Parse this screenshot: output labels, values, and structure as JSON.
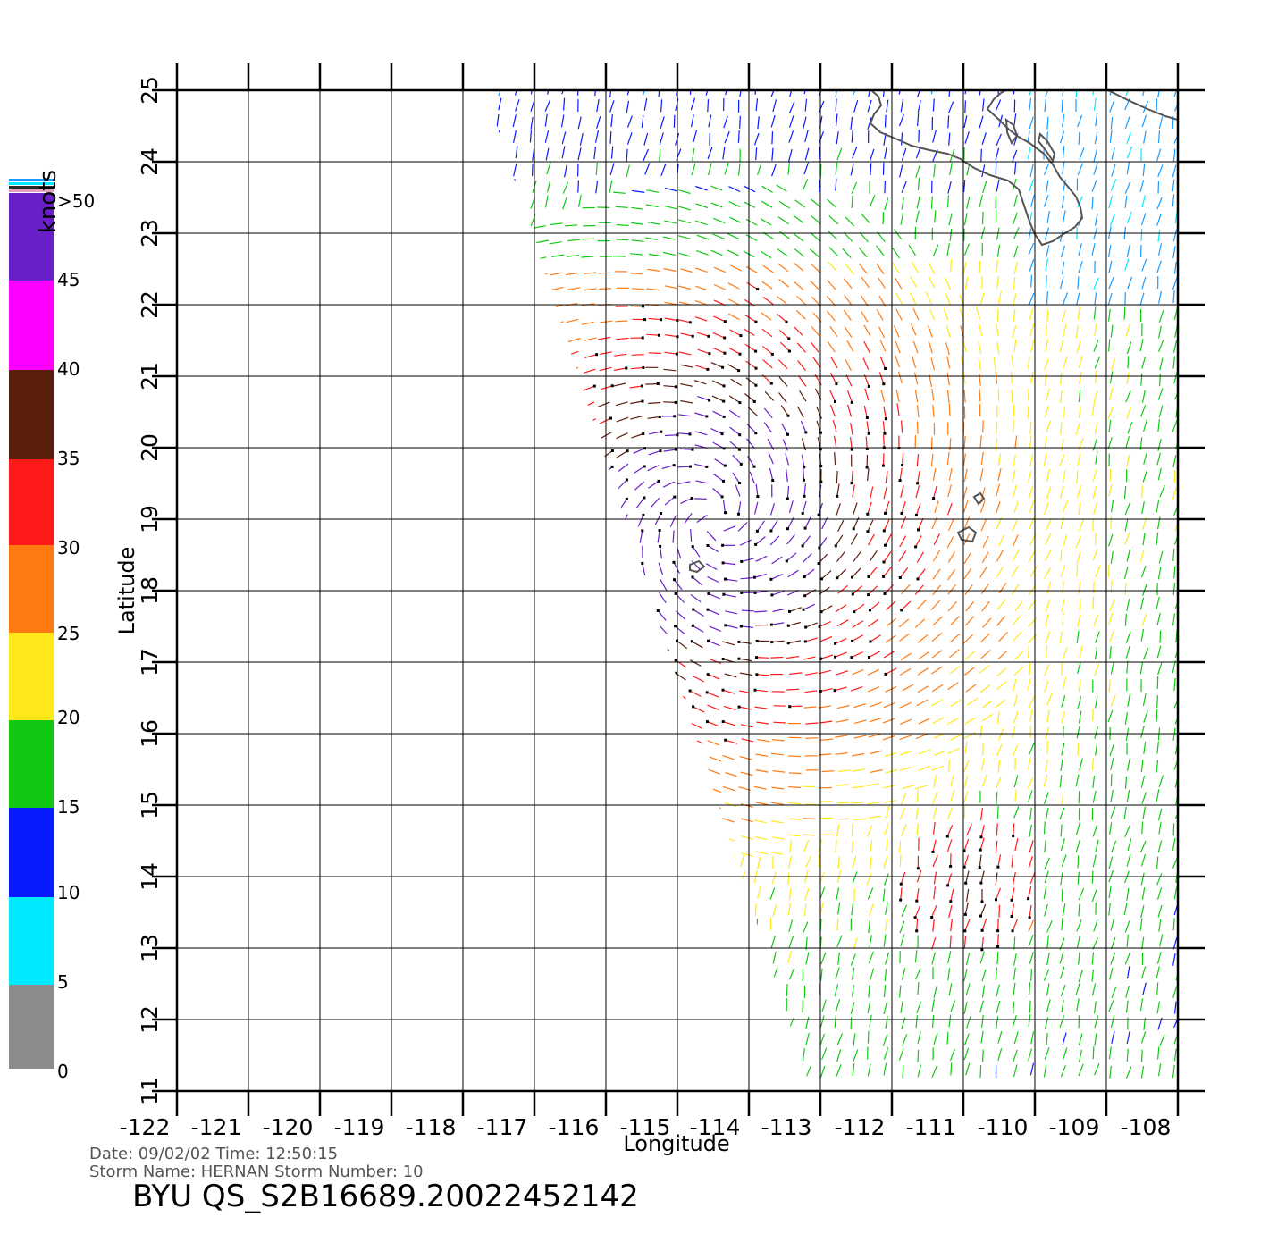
{
  "colorbar": {
    "unit_label": "knots",
    "ticks": [
      ">50",
      "45",
      "40",
      "35",
      "30",
      "25",
      "20",
      "15",
      "10",
      "5",
      "0"
    ],
    "colors": {
      "purple": "#6b1fc9",
      "magenta": "#ff00ff",
      "brown": "#5a1e0d",
      "tan": "#c07a50",
      "red": "#ff1a1a",
      "orange": "#ff7a12",
      "yellow": "#ffe81a",
      "green": "#12c812",
      "dark_green": "#0a7a0a",
      "blue": "#0a1aff",
      "sky": "#1a9bff",
      "cyan": "#00eaff",
      "dark_gray": "#2a2a2a",
      "gray": "#8c8c8c"
    }
  },
  "map": {
    "x_axis_label": "Longitude",
    "y_axis_label": "Latitude",
    "lon_ticks": [
      "-122",
      "-121",
      "-120",
      "-119",
      "-118",
      "-117",
      "-116",
      "-115",
      "-114",
      "-113",
      "-112",
      "-111",
      "-110",
      "-109",
      "-108"
    ],
    "lat_ticks": [
      "25",
      "24",
      "23",
      "22",
      "21",
      "20",
      "19",
      "18",
      "17",
      "16",
      "15",
      "14",
      "13",
      "12",
      "11"
    ],
    "lon_range": [
      -122,
      -108
    ],
    "lat_range": [
      11,
      25
    ],
    "storm_center": {
      "lon": -114.5,
      "lat": 19.0
    }
  },
  "footer": {
    "date_line": "Date: 09/02/02   Time: 12:50:15",
    "storm_line": "Storm Name: HERNAN   Storm Number: 10",
    "file_id": "BYU QS_S2B16689.20022452142"
  }
}
